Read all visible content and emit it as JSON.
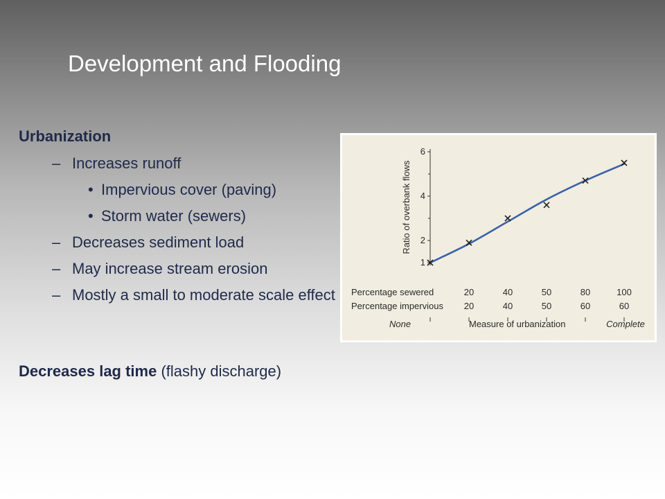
{
  "slide": {
    "title": "Development and Flooding",
    "section1": "Urbanization",
    "items": [
      {
        "level": 1,
        "bullet": "–",
        "text": "Increases runoff"
      },
      {
        "level": 2,
        "bullet": "•",
        "text": "Impervious cover (paving)"
      },
      {
        "level": 2,
        "bullet": "•",
        "text": "Storm water (sewers)"
      },
      {
        "level": 1,
        "bullet": "–",
        "text": "Decreases sediment load"
      },
      {
        "level": 1,
        "bullet": "–",
        "text": "May increase stream erosion"
      },
      {
        "level": 1,
        "bullet": "–",
        "text": "Mostly a small to moderate scale effect"
      }
    ],
    "lag_bold": "Decreases lag time",
    "lag_rest": " (flashy discharge)"
  },
  "chart_data": {
    "type": "line",
    "ylabel": "Ratio of overbank flows",
    "ylim": [
      1,
      6
    ],
    "yticks": [
      1,
      2,
      4,
      6
    ],
    "x_positions": [
      0,
      1,
      2,
      3,
      4,
      5
    ],
    "x_row_labels": [
      "Percentage sewered",
      "Percentage impervious"
    ],
    "sewered": [
      "20",
      "40",
      "50",
      "80",
      "100"
    ],
    "impervious": [
      "20",
      "40",
      "50",
      "60",
      "60"
    ],
    "xlabel_left": "None",
    "xlabel": "Measure of urbanization",
    "xlabel_right": "Complete",
    "points": [
      {
        "x": 0,
        "y": 1.0
      },
      {
        "x": 1,
        "y": 1.9
      },
      {
        "x": 2,
        "y": 3.0
      },
      {
        "x": 3,
        "y": 3.6
      },
      {
        "x": 4,
        "y": 4.7
      },
      {
        "x": 5,
        "y": 5.5
      }
    ],
    "curve": [
      {
        "x": 0,
        "y": 1.0
      },
      {
        "x": 1,
        "y": 1.85
      },
      {
        "x": 2,
        "y": 2.85
      },
      {
        "x": 3,
        "y": 3.85
      },
      {
        "x": 4,
        "y": 4.7
      },
      {
        "x": 5,
        "y": 5.45
      }
    ],
    "line_color": "#3a62a8",
    "grid": false
  }
}
